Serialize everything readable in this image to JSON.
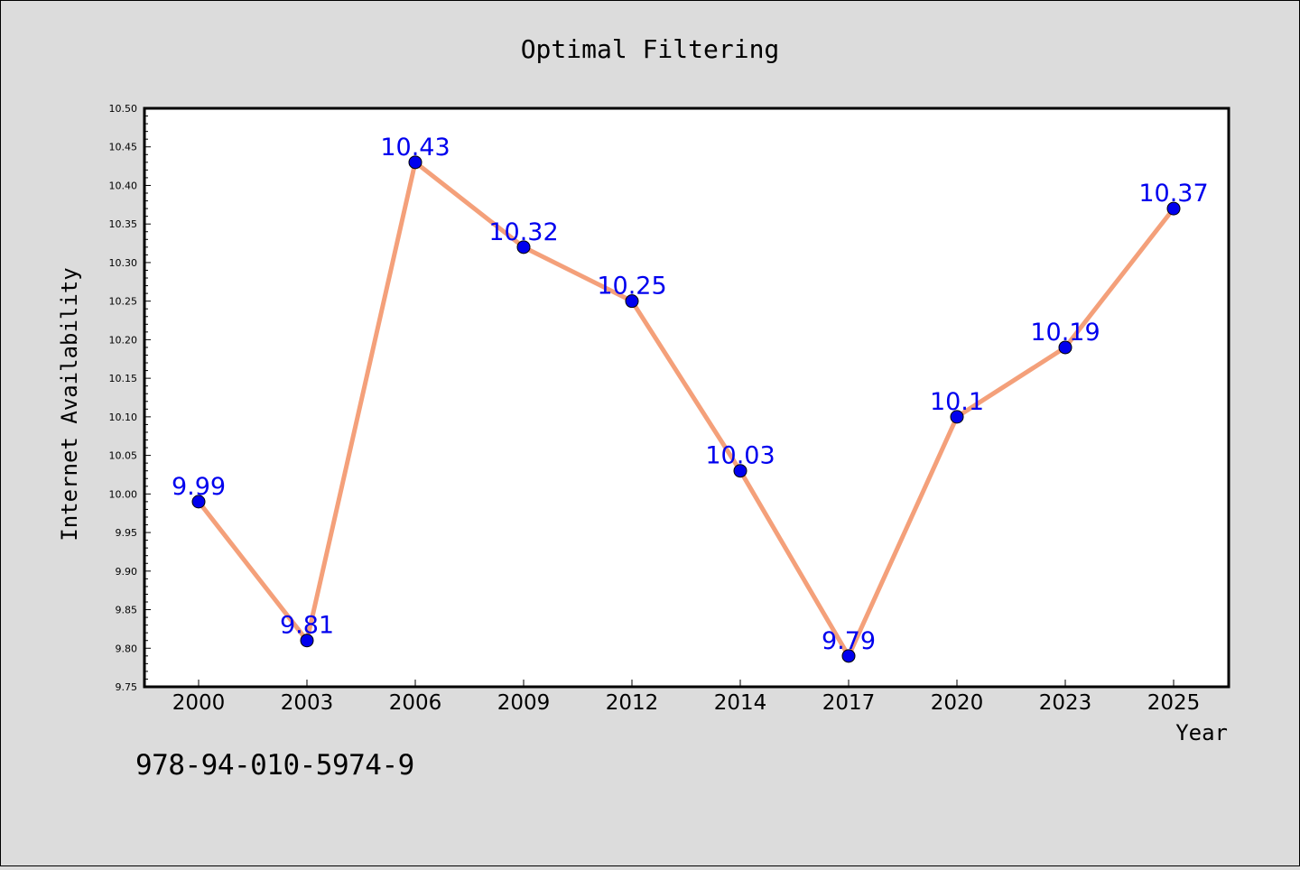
{
  "chart_data": {
    "type": "line",
    "title": "Optimal Filtering",
    "xlabel": "Year",
    "ylabel": "Internet Availability",
    "categories": [
      "2000",
      "2003",
      "2006",
      "2009",
      "2012",
      "2014",
      "2017",
      "2020",
      "2023",
      "2025"
    ],
    "series": [
      {
        "values": [
          9.99,
          9.81,
          10.43,
          10.32,
          10.25,
          10.03,
          9.79,
          10.1,
          10.19,
          10.37
        ],
        "labels": [
          "9.99",
          "9.81",
          "10.43",
          "10.32",
          "10.25",
          "10.03",
          "9.79",
          "10.1",
          "10.19",
          "10.37"
        ],
        "line_color": "#f4a07a",
        "marker_color": "#0000ee",
        "label_color": "#0000ee"
      }
    ],
    "ylim": [
      9.75,
      10.5
    ],
    "yticks": [
      "9.75",
      "9.80",
      "9.85",
      "9.90",
      "9.95",
      "10.00",
      "10.05",
      "10.10",
      "10.15",
      "10.20",
      "10.25",
      "10.30",
      "10.35",
      "10.40",
      "10.45",
      "10.50"
    ],
    "grid": false,
    "legend": "none"
  },
  "footer": {
    "code": "978-94-010-5974-9"
  }
}
